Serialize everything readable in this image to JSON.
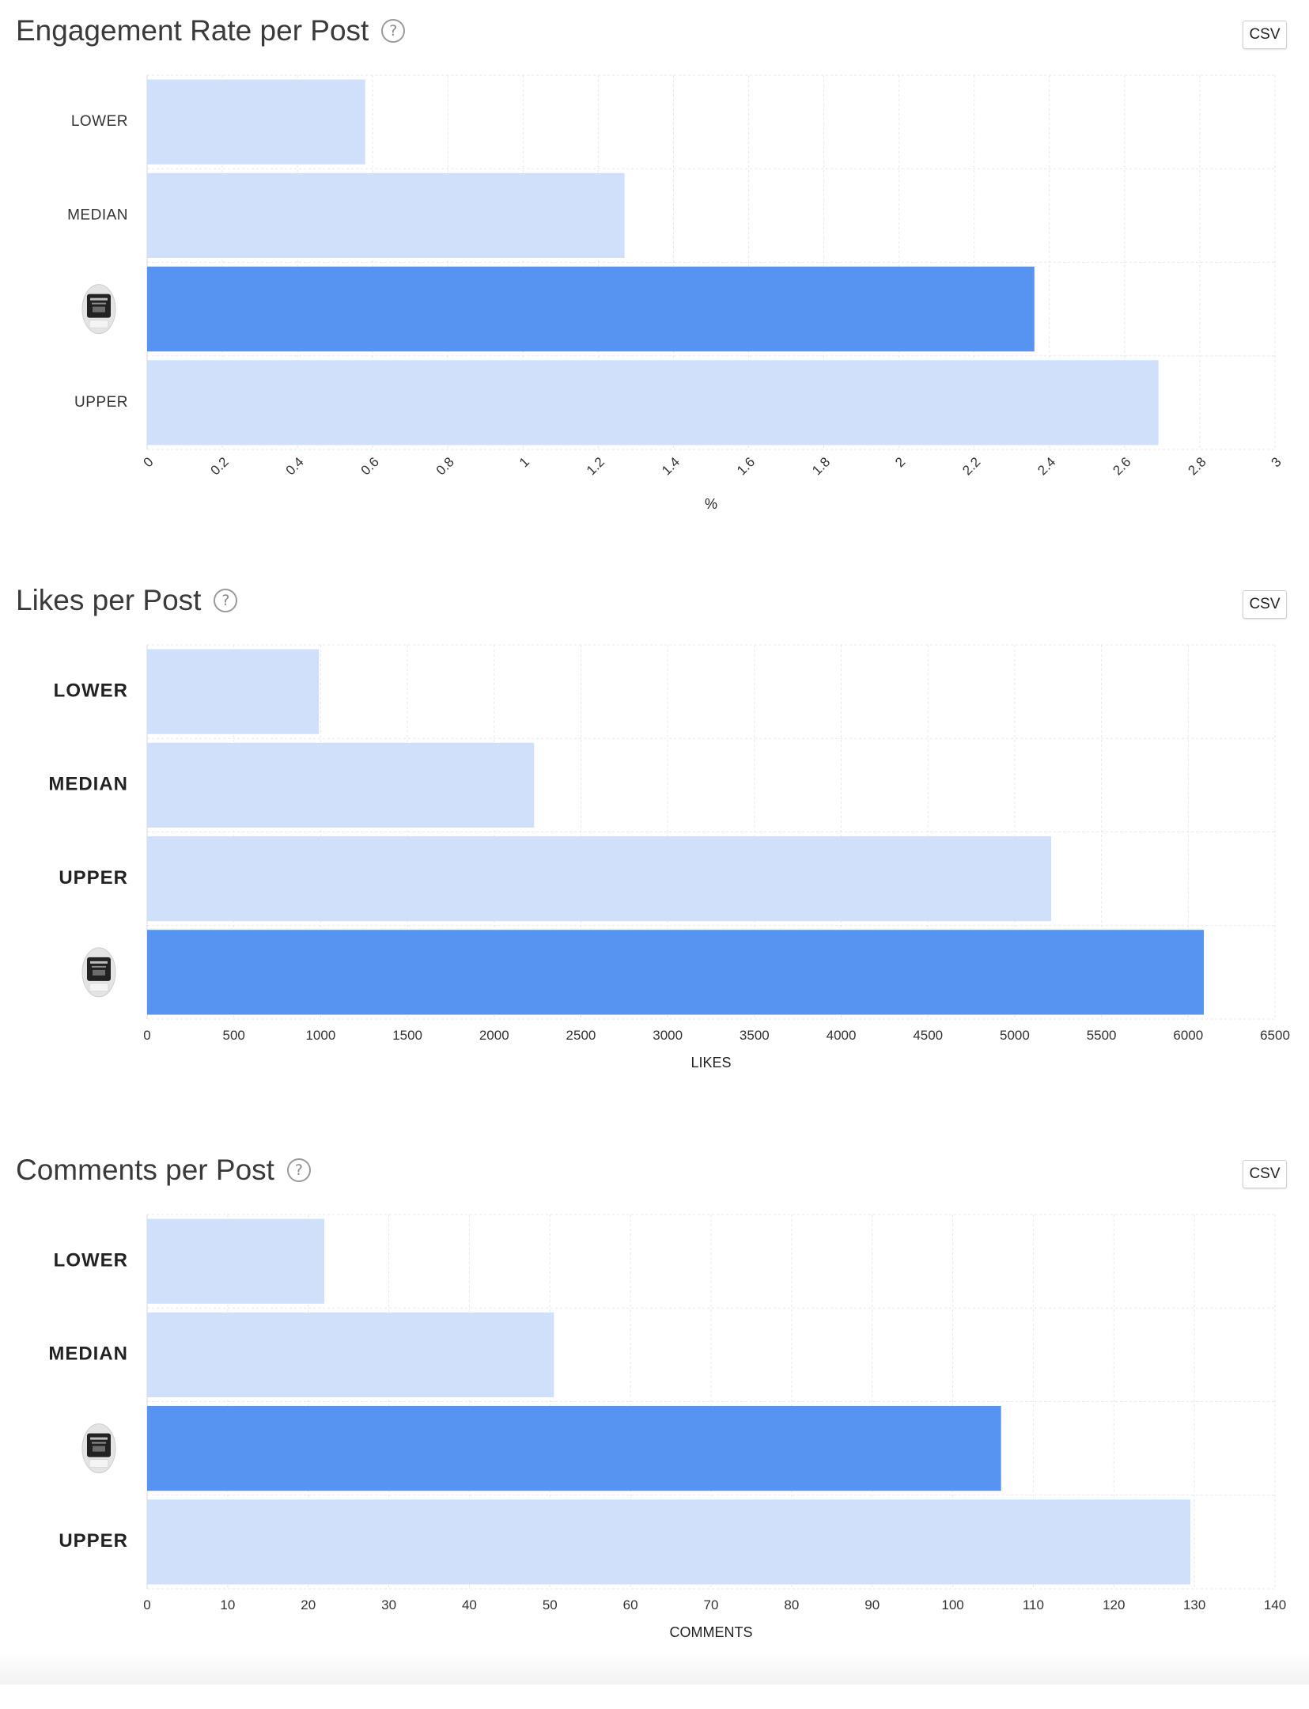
{
  "colors": {
    "accent_bar": "#5794f2",
    "benchmark_bar": "#d0e0fa",
    "grid": "#e8e8e8",
    "title": "#3a3a3a"
  },
  "charts": [
    {
      "id": "engagement",
      "title": "Engagement Rate per Post",
      "help_icon": "?",
      "csv_label": "CSV",
      "bold_category_labels": false,
      "chart_data": {
        "type": "bar",
        "orientation": "horizontal",
        "categories": [
          "LOWER",
          "MEDIAN",
          "",
          "UPPER"
        ],
        "category_icons": [
          null,
          null,
          "profile-avatar",
          null
        ],
        "values": [
          0.58,
          1.27,
          2.36,
          2.69
        ],
        "highlight_index": 2,
        "xlabel": "%",
        "ylabel": "",
        "xlim": [
          0,
          3
        ],
        "xticks": [
          "0",
          "0.2",
          "0.4",
          "0.6",
          "0.8",
          "1",
          "1.2",
          "1.4",
          "1.6",
          "1.8",
          "2",
          "2.2",
          "2.4",
          "2.6",
          "2.8",
          "3"
        ],
        "tick_labels_rotated": true,
        "grid": true
      }
    },
    {
      "id": "likes",
      "title": "Likes per Post",
      "help_icon": "?",
      "csv_label": "CSV",
      "bold_category_labels": true,
      "chart_data": {
        "type": "bar",
        "orientation": "horizontal",
        "categories": [
          "LOWER",
          "MEDIAN",
          "UPPER",
          ""
        ],
        "category_icons": [
          null,
          null,
          null,
          "profile-avatar"
        ],
        "values": [
          990,
          2230,
          5210,
          6090
        ],
        "highlight_index": 3,
        "xlabel": "LIKES",
        "ylabel": "",
        "xlim": [
          0,
          6500
        ],
        "xticks": [
          "0",
          "500",
          "1000",
          "1500",
          "2000",
          "2500",
          "3000",
          "3500",
          "4000",
          "4500",
          "5000",
          "5500",
          "6000",
          "6500"
        ],
        "tick_labels_rotated": false,
        "grid": true
      }
    },
    {
      "id": "comments",
      "title": "Comments per Post",
      "help_icon": "?",
      "csv_label": "CSV",
      "bold_category_labels": true,
      "chart_data": {
        "type": "bar",
        "orientation": "horizontal",
        "categories": [
          "LOWER",
          "MEDIAN",
          "",
          "UPPER"
        ],
        "category_icons": [
          null,
          null,
          "profile-avatar",
          null
        ],
        "values": [
          22,
          50.5,
          106,
          129.5
        ],
        "highlight_index": 2,
        "xlabel": "COMMENTS",
        "ylabel": "",
        "xlim": [
          0,
          140
        ],
        "xticks": [
          "0",
          "10",
          "20",
          "30",
          "40",
          "50",
          "60",
          "70",
          "80",
          "90",
          "100",
          "110",
          "120",
          "130",
          "140"
        ],
        "tick_labels_rotated": false,
        "grid": true
      }
    }
  ]
}
